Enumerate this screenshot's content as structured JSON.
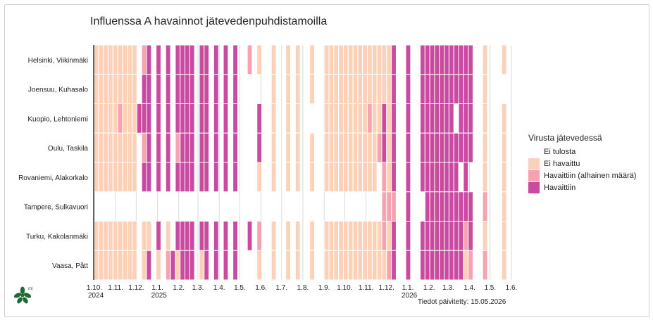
{
  "title": "Influenssa A havainnot jätevedenpuhdistamoilla",
  "caption": "Tiedot päivitetty: 15.05.2026",
  "colors": {
    "none": "#ffffff",
    "not_detected": "#fdd1b8",
    "low": "#f7a2b1",
    "detected": "#c94aa0",
    "axis_line": "#333333",
    "grid": "#dadada"
  },
  "legend": {
    "title": "Virusta jätevedessä",
    "items": [
      {
        "label": "Ei tulosta",
        "color": "#ffffff"
      },
      {
        "label": "Ei havaittu",
        "color": "#fdd1b8"
      },
      {
        "label": "Havaittiin (alhainen määrä)",
        "color": "#f7a2b1"
      },
      {
        "label": "Havaittiin",
        "color": "#c94aa0"
      }
    ]
  },
  "chart_data": {
    "type": "heatmap",
    "title": "Influenssa A havainnot jätevedenpuhdistamoilla",
    "value_codes": {
      "0": "Ei tulosta",
      "1": "Ei havaittu",
      "2": "Havaittiin (alhainen määrä)",
      "3": "Havaittiin"
    },
    "x_range": [
      "2024-10-01",
      "2026-06-01"
    ],
    "x_tick_labels": [
      "1.10.",
      "1.11.",
      "1.12.",
      "1.1.",
      "1.2.",
      "1.3.",
      "1.4.",
      "1.5.",
      "1.6.",
      "1.7.",
      "1.8.",
      "1.9.",
      "1.10.",
      "1.11.",
      "1.12.",
      "1.1.",
      "1.2.",
      "1.3.",
      "1.4.",
      "1.5.",
      "1.6."
    ],
    "x_ticks": [
      "2024-10-01",
      "2024-11-01",
      "2024-12-01",
      "2025-01-01",
      "2025-02-01",
      "2025-03-01",
      "2025-04-01",
      "2025-05-01",
      "2025-06-01",
      "2025-07-01",
      "2025-08-01",
      "2025-09-01",
      "2025-10-01",
      "2025-11-01",
      "2025-12-01",
      "2026-01-01",
      "2026-02-01",
      "2026-03-01",
      "2026-04-01",
      "2026-05-01",
      "2026-06-01"
    ],
    "year_labels": [
      {
        "date": "2024-10-01",
        "label": "2024"
      },
      {
        "date": "2025-01-01",
        "label": "2025"
      },
      {
        "date": "2026-01-01",
        "label": "2026"
      }
    ],
    "week_dates": [
      "2024-09-30",
      "2024-10-07",
      "2024-10-14",
      "2024-10-21",
      "2024-10-28",
      "2024-11-04",
      "2024-11-11",
      "2024-11-18",
      "2024-11-25",
      "2024-12-02",
      "2024-12-09",
      "2024-12-16",
      "2024-12-23",
      "2024-12-30",
      "2025-01-06",
      "2025-01-13",
      "2025-01-20",
      "2025-01-27",
      "2025-02-03",
      "2025-02-10",
      "2025-02-17",
      "2025-02-24",
      "2025-03-03",
      "2025-03-10",
      "2025-03-17",
      "2025-03-24",
      "2025-03-31",
      "2025-04-07",
      "2025-04-14",
      "2025-04-21",
      "2025-04-28",
      "2025-05-05",
      "2025-05-12",
      "2025-05-19",
      "2025-05-26",
      "2025-06-02",
      "2025-06-09",
      "2025-06-16",
      "2025-06-23",
      "2025-06-30",
      "2025-07-07",
      "2025-07-14",
      "2025-07-21",
      "2025-07-28",
      "2025-08-04",
      "2025-08-11",
      "2025-08-18",
      "2025-08-25",
      "2025-09-01",
      "2025-09-08",
      "2025-09-15",
      "2025-09-22",
      "2025-09-29",
      "2025-10-06",
      "2025-10-13",
      "2025-10-20",
      "2025-10-27",
      "2025-11-03",
      "2025-11-10",
      "2025-11-17",
      "2025-11-24",
      "2025-12-01",
      "2025-12-08",
      "2025-12-15",
      "2025-12-22",
      "2025-12-29",
      "2026-01-05",
      "2026-01-12",
      "2026-01-19",
      "2026-01-26",
      "2026-02-02",
      "2026-02-09",
      "2026-02-16",
      "2026-02-23",
      "2026-03-02",
      "2026-03-09",
      "2026-03-16",
      "2026-03-23",
      "2026-03-30",
      "2026-04-06",
      "2026-04-13",
      "2026-04-20",
      "2026-04-27",
      "2026-05-04",
      "2026-05-11",
      "2026-05-18",
      "2026-05-25"
    ],
    "rows": [
      {
        "name": "Helsinki, Viikinmäki",
        "values": [
          1,
          1,
          1,
          1,
          1,
          1,
          1,
          1,
          1,
          0,
          2,
          3,
          0,
          3,
          0,
          3,
          0,
          3,
          3,
          3,
          3,
          0,
          3,
          3,
          0,
          3,
          0,
          3,
          0,
          3,
          0,
          0,
          2,
          0,
          1,
          0,
          0,
          1,
          0,
          0,
          1,
          0,
          1,
          0,
          0,
          1,
          0,
          0,
          1,
          1,
          1,
          1,
          1,
          1,
          1,
          1,
          1,
          1,
          1,
          1,
          1,
          1,
          3,
          0,
          0,
          3,
          0,
          0,
          3,
          3,
          3,
          3,
          3,
          3,
          3,
          3,
          3,
          3,
          3,
          0,
          0,
          1,
          0,
          0,
          0,
          1,
          0
        ]
      },
      {
        "name": "Joensuu, Kuhasalo",
        "values": [
          1,
          1,
          1,
          1,
          1,
          1,
          1,
          1,
          1,
          0,
          3,
          3,
          0,
          3,
          0,
          3,
          0,
          3,
          3,
          3,
          3,
          0,
          3,
          3,
          0,
          3,
          0,
          3,
          0,
          3,
          0,
          0,
          0,
          0,
          0,
          0,
          0,
          1,
          0,
          0,
          1,
          0,
          1,
          0,
          0,
          1,
          0,
          0,
          1,
          1,
          1,
          1,
          1,
          1,
          1,
          1,
          1,
          1,
          1,
          1,
          1,
          1,
          3,
          0,
          0,
          3,
          0,
          0,
          3,
          3,
          3,
          3,
          3,
          3,
          3,
          3,
          3,
          3,
          3,
          0,
          0,
          1,
          0,
          0,
          0,
          0,
          0
        ]
      },
      {
        "name": "Kuopio, Lehtoniemi",
        "values": [
          1,
          1,
          1,
          1,
          1,
          2,
          1,
          1,
          1,
          3,
          3,
          3,
          0,
          3,
          0,
          3,
          0,
          3,
          3,
          3,
          3,
          0,
          3,
          3,
          0,
          3,
          0,
          3,
          0,
          3,
          0,
          0,
          0,
          0,
          3,
          0,
          0,
          1,
          0,
          0,
          1,
          0,
          1,
          0,
          0,
          0,
          0,
          0,
          1,
          1,
          1,
          1,
          1,
          1,
          1,
          1,
          1,
          2,
          1,
          1,
          3,
          1,
          3,
          0,
          0,
          3,
          0,
          0,
          3,
          3,
          3,
          3,
          3,
          3,
          3,
          0,
          3,
          3,
          3,
          0,
          0,
          1,
          0,
          0,
          0,
          1,
          0
        ]
      },
      {
        "name": "Oulu, Taskila",
        "values": [
          1,
          1,
          1,
          1,
          1,
          1,
          1,
          1,
          1,
          0,
          2,
          3,
          0,
          3,
          0,
          3,
          0,
          2,
          3,
          3,
          3,
          0,
          3,
          3,
          0,
          3,
          0,
          3,
          0,
          3,
          0,
          0,
          0,
          0,
          3,
          0,
          0,
          1,
          0,
          0,
          1,
          0,
          1,
          0,
          0,
          1,
          0,
          0,
          1,
          1,
          1,
          1,
          1,
          1,
          1,
          1,
          1,
          1,
          1,
          2,
          3,
          1,
          3,
          0,
          0,
          3,
          0,
          0,
          3,
          3,
          3,
          3,
          3,
          3,
          3,
          3,
          3,
          3,
          3,
          0,
          0,
          1,
          0,
          0,
          0,
          1,
          0
        ]
      },
      {
        "name": "Rovaniemi, Alakorkalo",
        "values": [
          1,
          1,
          1,
          1,
          1,
          1,
          1,
          1,
          1,
          0,
          3,
          3,
          0,
          3,
          0,
          3,
          0,
          3,
          3,
          3,
          3,
          0,
          3,
          3,
          0,
          3,
          0,
          3,
          0,
          3,
          0,
          0,
          0,
          0,
          1,
          0,
          0,
          1,
          0,
          0,
          1,
          0,
          1,
          0,
          0,
          1,
          0,
          0,
          1,
          1,
          1,
          1,
          1,
          1,
          1,
          1,
          1,
          1,
          1,
          0,
          2,
          1,
          3,
          0,
          0,
          3,
          0,
          0,
          3,
          3,
          3,
          3,
          3,
          3,
          3,
          3,
          0,
          3,
          0,
          0,
          0,
          1,
          0,
          0,
          0,
          1,
          0
        ]
      },
      {
        "name": "Tampere, Sulkavuori",
        "values": [
          0,
          0,
          0,
          0,
          0,
          0,
          0,
          0,
          0,
          0,
          0,
          0,
          0,
          0,
          0,
          0,
          0,
          0,
          0,
          0,
          0,
          0,
          0,
          0,
          0,
          0,
          0,
          0,
          0,
          0,
          0,
          0,
          0,
          0,
          0,
          0,
          0,
          0,
          0,
          0,
          0,
          0,
          0,
          0,
          0,
          0,
          0,
          0,
          0,
          0,
          0,
          0,
          0,
          0,
          0,
          0,
          0,
          0,
          0,
          0,
          2,
          2,
          2,
          0,
          0,
          3,
          0,
          0,
          0,
          3,
          3,
          3,
          3,
          3,
          3,
          3,
          3,
          3,
          3,
          0,
          0,
          2,
          0,
          0,
          0,
          1,
          0
        ]
      },
      {
        "name": "Turku, Kakolanmäki",
        "values": [
          1,
          1,
          1,
          1,
          1,
          1,
          1,
          1,
          1,
          0,
          1,
          1,
          0,
          3,
          0,
          1,
          0,
          3,
          3,
          3,
          3,
          0,
          3,
          3,
          0,
          3,
          0,
          3,
          0,
          3,
          0,
          0,
          3,
          0,
          2,
          0,
          0,
          1,
          0,
          0,
          1,
          0,
          1,
          0,
          0,
          1,
          0,
          0,
          1,
          1,
          1,
          1,
          1,
          1,
          1,
          1,
          1,
          1,
          1,
          1,
          2,
          1,
          3,
          0,
          0,
          3,
          0,
          0,
          3,
          3,
          3,
          3,
          3,
          3,
          3,
          3,
          3,
          2,
          3,
          0,
          0,
          1,
          0,
          0,
          0,
          1,
          0
        ]
      },
      {
        "name": "Vaasa, Pått",
        "values": [
          1,
          1,
          1,
          1,
          1,
          1,
          1,
          1,
          1,
          0,
          1,
          3,
          0,
          1,
          0,
          2,
          3,
          1,
          3,
          3,
          3,
          0,
          1,
          3,
          0,
          3,
          0,
          3,
          0,
          3,
          0,
          0,
          0,
          0,
          1,
          0,
          0,
          1,
          0,
          0,
          1,
          0,
          1,
          0,
          0,
          1,
          0,
          0,
          1,
          1,
          1,
          1,
          1,
          1,
          1,
          1,
          1,
          1,
          1,
          1,
          1,
          2,
          3,
          0,
          0,
          3,
          0,
          0,
          3,
          3,
          3,
          3,
          3,
          3,
          3,
          3,
          3,
          1,
          2,
          0,
          0,
          2,
          0,
          0,
          0,
          1,
          0
        ]
      }
    ]
  }
}
